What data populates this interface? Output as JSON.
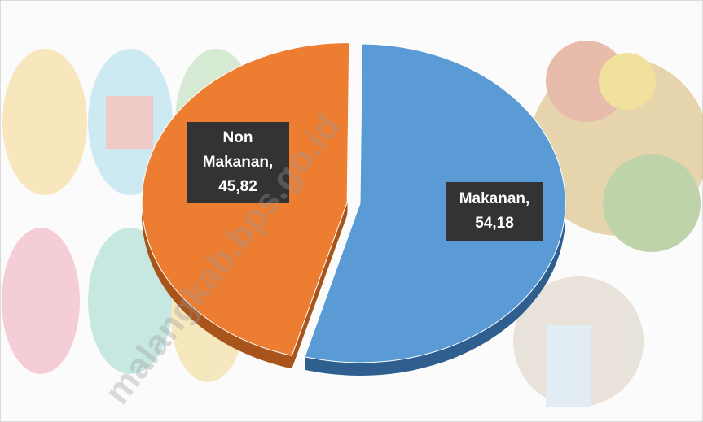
{
  "chart_data": {
    "type": "pie",
    "categories": [
      "Makanan,",
      "Non Makanan,"
    ],
    "values": [
      54.18,
      45.82
    ],
    "value_labels": [
      "54,18",
      "45,82"
    ],
    "colors": [
      "#5b9bd5",
      "#ed7d31"
    ],
    "side_colors": [
      "#2f5f8f",
      "#a8551c"
    ],
    "exploded": [
      false,
      true
    ],
    "watermark": "malangkab.bps.go.id"
  }
}
